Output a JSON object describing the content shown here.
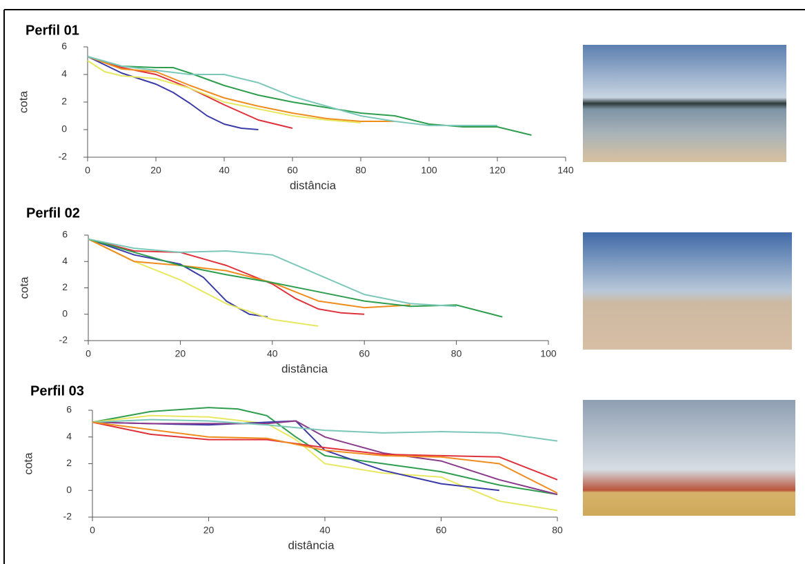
{
  "chart_data": [
    {
      "type": "line",
      "title": "Perfil 01",
      "x_label": "distância",
      "y_label": "cota",
      "xlim": [
        0,
        140
      ],
      "xticks": [
        0,
        20,
        40,
        60,
        80,
        100,
        120,
        140
      ],
      "ylim": [
        -2,
        6
      ],
      "yticks": [
        -2,
        0,
        2,
        4,
        6
      ],
      "series": [
        {
          "color": "#3a3aa8",
          "x": [
            0,
            5,
            10,
            15,
            20,
            25,
            30,
            35,
            40,
            45,
            50
          ],
          "values": [
            5.3,
            4.7,
            4.1,
            3.7,
            3.3,
            2.7,
            1.9,
            1.0,
            0.4,
            0.1,
            0
          ]
        },
        {
          "color": "#e0303a",
          "x": [
            0,
            10,
            20,
            30,
            40,
            50,
            60
          ],
          "values": [
            5.3,
            4.5,
            4.0,
            3.0,
            1.8,
            0.7,
            0.1
          ]
        },
        {
          "color": "#f08c1e",
          "x": [
            0,
            10,
            20,
            30,
            40,
            50,
            60,
            70,
            80,
            90
          ],
          "values": [
            5.3,
            4.4,
            4.2,
            3.2,
            2.3,
            1.7,
            1.2,
            0.8,
            0.6,
            0.6
          ]
        },
        {
          "color": "#e8e860",
          "x": [
            0,
            5,
            10,
            20,
            30,
            40,
            50,
            60,
            70,
            80
          ],
          "values": [
            5.0,
            4.2,
            3.9,
            3.7,
            3.0,
            2.0,
            1.5,
            1.0,
            0.7,
            0.5
          ]
        },
        {
          "color": "#2e9e4e",
          "x": [
            0,
            10,
            20,
            25,
            30,
            40,
            50,
            60,
            70,
            80,
            90,
            100,
            110,
            120,
            130
          ],
          "values": [
            5.3,
            4.6,
            4.5,
            4.5,
            4.1,
            3.2,
            2.5,
            2.0,
            1.6,
            1.2,
            1.0,
            0.4,
            0.2,
            0.2,
            -0.4
          ]
        },
        {
          "color": "#7cc8b8",
          "x": [
            0,
            10,
            20,
            30,
            40,
            50,
            60,
            70,
            80,
            90,
            100,
            110,
            120
          ],
          "values": [
            5.3,
            4.6,
            4.3,
            4.0,
            4.0,
            3.4,
            2.4,
            1.7,
            1.0,
            0.6,
            0.3,
            0.3,
            0.3
          ]
        }
      ]
    },
    {
      "type": "line",
      "title": "Perfil 02",
      "x_label": "distância",
      "y_label": "cota",
      "xlim": [
        0,
        100
      ],
      "xticks": [
        0,
        20,
        40,
        60,
        80,
        100
      ],
      "ylim": [
        -2,
        6
      ],
      "yticks": [
        -2,
        0,
        2,
        4,
        6
      ],
      "series": [
        {
          "color": "#3a3aa8",
          "x": [
            0,
            10,
            20,
            25,
            30,
            35,
            39
          ],
          "values": [
            5.7,
            4.5,
            3.8,
            2.8,
            1.0,
            0.0,
            -0.2
          ]
        },
        {
          "color": "#e8e860",
          "x": [
            0,
            10,
            20,
            25,
            30,
            40,
            50
          ],
          "values": [
            5.7,
            4.0,
            2.6,
            1.7,
            0.8,
            -0.4,
            -0.9
          ]
        },
        {
          "color": "#e0303a",
          "x": [
            0,
            10,
            20,
            30,
            40,
            45,
            50,
            55,
            60
          ],
          "values": [
            5.7,
            4.8,
            4.7,
            3.7,
            2.3,
            1.2,
            0.4,
            0.1,
            0
          ]
        },
        {
          "color": "#f08c1e",
          "x": [
            0,
            10,
            20,
            30,
            40,
            50,
            60,
            70
          ],
          "values": [
            5.7,
            4.0,
            3.7,
            3.3,
            2.4,
            1.0,
            0.5,
            0.7
          ]
        },
        {
          "color": "#2e9e4e",
          "x": [
            0,
            10,
            20,
            30,
            40,
            50,
            60,
            70,
            80,
            90
          ],
          "values": [
            5.7,
            4.7,
            3.7,
            3.0,
            2.4,
            1.7,
            1.0,
            0.6,
            0.7,
            -0.2
          ]
        },
        {
          "color": "#7cc8b8",
          "x": [
            0,
            10,
            20,
            30,
            40,
            50,
            60,
            70,
            80
          ],
          "values": [
            5.7,
            5.0,
            4.7,
            4.8,
            4.5,
            3.0,
            1.5,
            0.8,
            0.6
          ]
        }
      ]
    },
    {
      "type": "line",
      "title": "Perfil 03",
      "x_label": "distância",
      "y_label": "cota",
      "xlim": [
        0,
        80
      ],
      "xticks": [
        0,
        20,
        40,
        60,
        80
      ],
      "ylim": [
        -2,
        6
      ],
      "yticks": [
        -2,
        0,
        2,
        4,
        6
      ],
      "series": [
        {
          "color": "#2e9e4e",
          "x": [
            0,
            10,
            20,
            25,
            30,
            35,
            40,
            50,
            60,
            70,
            80
          ],
          "values": [
            5.1,
            5.9,
            6.2,
            6.1,
            5.6,
            4.0,
            2.6,
            2.0,
            1.4,
            0.4,
            -0.3
          ]
        },
        {
          "color": "#e8e860",
          "x": [
            0,
            10,
            20,
            30,
            35,
            40,
            50,
            60,
            70,
            80
          ],
          "values": [
            5.1,
            5.6,
            5.5,
            5.0,
            3.8,
            2.0,
            1.3,
            1.0,
            -0.8,
            -1.5
          ]
        },
        {
          "color": "#3a3aa8",
          "x": [
            0,
            10,
            20,
            30,
            35,
            40,
            50,
            60,
            70
          ],
          "values": [
            5.1,
            5.0,
            4.9,
            5.1,
            5.2,
            3.0,
            1.5,
            0.5,
            0.0
          ]
        },
        {
          "color": "#8a3a8a",
          "x": [
            0,
            10,
            20,
            30,
            35,
            40,
            50,
            60,
            70,
            80
          ],
          "values": [
            5.1,
            5.0,
            5.0,
            5.0,
            5.2,
            4.0,
            2.8,
            2.2,
            0.8,
            -0.3
          ]
        },
        {
          "color": "#e0303a",
          "x": [
            0,
            10,
            20,
            30,
            40,
            50,
            60,
            70,
            80
          ],
          "values": [
            5.1,
            4.2,
            3.8,
            3.8,
            3.2,
            2.7,
            2.6,
            2.5,
            0.8
          ]
        },
        {
          "color": "#7cc8b8",
          "x": [
            0,
            10,
            20,
            30,
            40,
            50,
            60,
            70,
            80
          ],
          "values": [
            5.1,
            5.3,
            5.2,
            4.9,
            4.5,
            4.3,
            4.4,
            4.3,
            3.7
          ]
        },
        {
          "color": "#f08c1e",
          "x": [
            0,
            20,
            30,
            40,
            50,
            60,
            70,
            80
          ],
          "values": [
            5.1,
            4.0,
            3.9,
            3.0,
            2.6,
            2.5,
            2.0,
            -0.2
          ]
        }
      ]
    }
  ]
}
